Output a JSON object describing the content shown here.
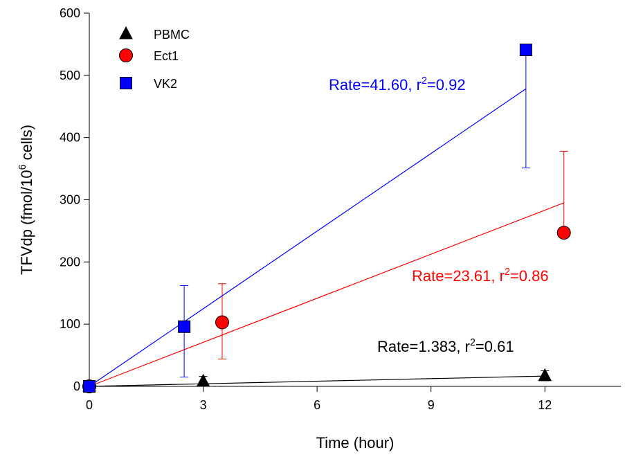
{
  "chart_data": {
    "type": "scatter",
    "x_label": "Time (hour)",
    "y_label": {
      "text": "TFVdp (fmol/10",
      "sup": "6",
      "text2": " cells)"
    },
    "xlim": [
      0,
      14
    ],
    "xticks": [
      0,
      3,
      6,
      9,
      12
    ],
    "ylim": [
      0,
      600
    ],
    "yticks": [
      0,
      100,
      200,
      300,
      400,
      500,
      600
    ],
    "series": [
      {
        "name": "PBMC",
        "color": "#000000",
        "marker": "triangle",
        "x": [
          0,
          3,
          12
        ],
        "values": [
          0,
          8,
          17
        ],
        "err_plus": [
          null,
          8,
          8
        ],
        "err_minus": [
          null,
          8,
          8
        ],
        "rate": 1.383,
        "annotation": {
          "text": "Rate=1.383, r",
          "sup": "2",
          "text2": "=0.61"
        }
      },
      {
        "name": "Ect1",
        "color": "#ff0000",
        "marker": "circle",
        "x": [
          0,
          3.5,
          12.5
        ],
        "values": [
          0,
          103,
          247
        ],
        "err_plus": [
          null,
          62,
          131
        ],
        "err_minus": [
          null,
          59,
          null
        ],
        "rate": 23.61,
        "annotation": {
          "text": "Rate=23.61, r",
          "sup": "2",
          "text2": "=0.86"
        }
      },
      {
        "name": "VK2",
        "color": "#0000ff",
        "marker": "square",
        "x": [
          0,
          2.5,
          11.5
        ],
        "values": [
          0,
          96,
          541
        ],
        "err_plus": [
          null,
          66,
          null
        ],
        "err_minus": [
          null,
          81,
          190
        ],
        "rate": 41.6,
        "annotation": {
          "text": "Rate=41.60, r",
          "sup": "2",
          "text2": "=0.92"
        }
      }
    ]
  }
}
